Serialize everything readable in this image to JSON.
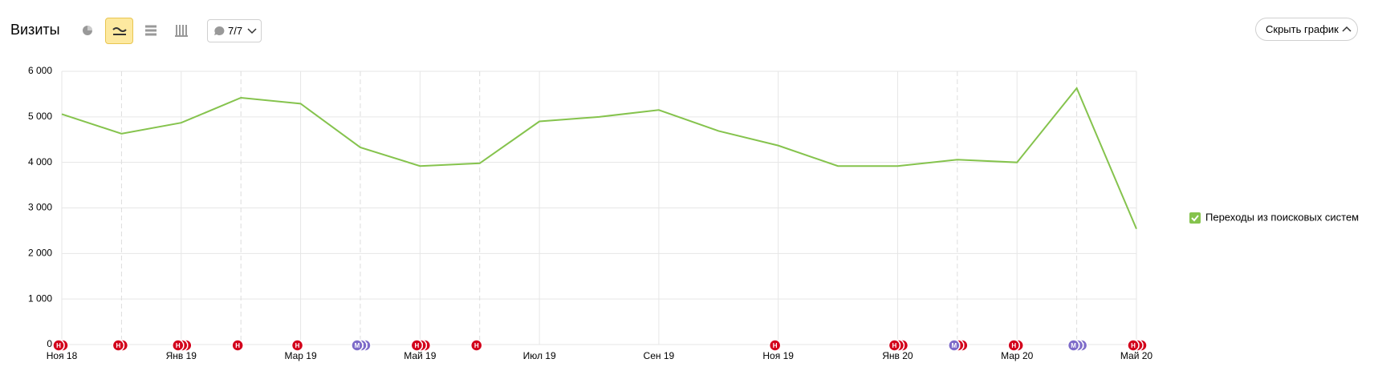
{
  "header": {
    "title": "Визиты",
    "comments_filter": "7/7",
    "hide_button": "Скрыть график"
  },
  "chart_data": {
    "type": "line",
    "categories": [
      "Ноя 18",
      null,
      "Янв 19",
      null,
      "Мар 19",
      null,
      "Май 19",
      null,
      "Июл 19",
      null,
      "Сен 19",
      null,
      "Ноя 19",
      null,
      "Янв 20",
      null,
      "Мар 20",
      null,
      "Май 20"
    ],
    "series": [
      {
        "name": "Переходы из поисковых систем",
        "color": "#85c34d",
        "values": [
          5060,
          4630,
          4870,
          5420,
          5290,
          4330,
          3920,
          3980,
          4900,
          5000,
          5150,
          4690,
          4370,
          3920,
          3920,
          4060,
          4000,
          5630,
          2540
        ]
      }
    ],
    "ylim": [
      0,
      6000
    ],
    "yticks": [
      0,
      {
        "value": 1000,
        "label": "1 000"
      },
      {
        "value": 2000,
        "label": "2 000"
      },
      {
        "value": 3000,
        "label": "3 000"
      },
      {
        "value": 4000,
        "label": "4 000"
      },
      {
        "value": 5000,
        "label": "5 000"
      },
      {
        "value": 6000,
        "label": "6 000"
      }
    ],
    "grid": true,
    "legend": "right",
    "annotation_colors": {
      "Н": "#d3001b",
      "М": "#7d6bc9"
    },
    "annotations": [
      {
        "at": 0,
        "labels": [
          "Н",
          "Н"
        ]
      },
      {
        "at": 1,
        "labels": [
          "Н",
          "Н"
        ]
      },
      {
        "at": 2,
        "labels": [
          "Н",
          "Н",
          "Н"
        ]
      },
      {
        "at": 3,
        "labels": [
          "Н"
        ]
      },
      {
        "at": 4,
        "labels": [
          "Н"
        ]
      },
      {
        "at": 5,
        "labels": [
          "М",
          "М",
          "М"
        ]
      },
      {
        "at": 6,
        "labels": [
          "Н",
          "Н",
          "Н"
        ]
      },
      {
        "at": 7,
        "labels": [
          "Н"
        ]
      },
      {
        "at": 12,
        "labels": [
          "Н"
        ]
      },
      {
        "at": 14,
        "labels": [
          "Н",
          "Н",
          "Н"
        ]
      },
      {
        "at": 15,
        "labels": [
          "М",
          "Н",
          "Н"
        ]
      },
      {
        "at": 16,
        "labels": [
          "Н",
          "Н"
        ]
      },
      {
        "at": 17,
        "labels": [
          "М",
          "М",
          "М"
        ]
      },
      {
        "at": 18,
        "labels": [
          "Н",
          "Н",
          "Н"
        ]
      }
    ]
  }
}
